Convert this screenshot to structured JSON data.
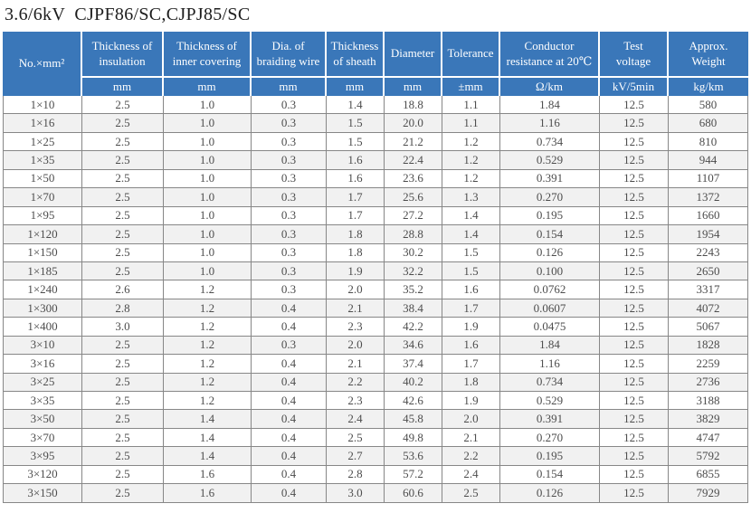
{
  "title": "3.6/6kV  CJPF86/SC,CJPJ85/SC",
  "colors": {
    "header_bg": "#3a77b9",
    "header_text": "#ffffff",
    "row_stripe": "#f1f1f1",
    "grid_line": "#878787",
    "body_text": "#4d4d4d"
  },
  "table": {
    "columns": [
      {
        "label": "No.×mm²",
        "unit": ""
      },
      {
        "label": "Thickness of insulation",
        "unit": "mm"
      },
      {
        "label": "Thickness of inner covering",
        "unit": "mm"
      },
      {
        "label": "Dia. of braiding wire",
        "unit": "mm"
      },
      {
        "label": "Thickness of sheath",
        "unit": "mm"
      },
      {
        "label": "Diameter",
        "unit": "mm"
      },
      {
        "label": "Tolerance",
        "unit": "±mm"
      },
      {
        "label": "Conductor resistance at 20℃",
        "unit": "Ω/km"
      },
      {
        "label": "Test voltage",
        "unit": "kV/5min"
      },
      {
        "label": "Approx. Weight",
        "unit": "kg/km"
      }
    ],
    "rows": [
      [
        "1×10",
        "2.5",
        "1.0",
        "0.3",
        "1.4",
        "18.8",
        "1.1",
        "1.84",
        "12.5",
        "580"
      ],
      [
        "1×16",
        "2.5",
        "1.0",
        "0.3",
        "1.5",
        "20.0",
        "1.1",
        "1.16",
        "12.5",
        "680"
      ],
      [
        "1×25",
        "2.5",
        "1.0",
        "0.3",
        "1.5",
        "21.2",
        "1.2",
        "0.734",
        "12.5",
        "810"
      ],
      [
        "1×35",
        "2.5",
        "1.0",
        "0.3",
        "1.6",
        "22.4",
        "1.2",
        "0.529",
        "12.5",
        "944"
      ],
      [
        "1×50",
        "2.5",
        "1.0",
        "0.3",
        "1.6",
        "23.6",
        "1.2",
        "0.391",
        "12.5",
        "1107"
      ],
      [
        "1×70",
        "2.5",
        "1.0",
        "0.3",
        "1.7",
        "25.6",
        "1.3",
        "0.270",
        "12.5",
        "1372"
      ],
      [
        "1×95",
        "2.5",
        "1.0",
        "0.3",
        "1.7",
        "27.2",
        "1.4",
        "0.195",
        "12.5",
        "1660"
      ],
      [
        "1×120",
        "2.5",
        "1.0",
        "0.3",
        "1.8",
        "28.8",
        "1.4",
        "0.154",
        "12.5",
        "1954"
      ],
      [
        "1×150",
        "2.5",
        "1.0",
        "0.3",
        "1.8",
        "30.2",
        "1.5",
        "0.126",
        "12.5",
        "2243"
      ],
      [
        "1×185",
        "2.5",
        "1.0",
        "0.3",
        "1.9",
        "32.2",
        "1.5",
        "0.100",
        "12.5",
        "2650"
      ],
      [
        "1×240",
        "2.6",
        "1.2",
        "0.3",
        "2.0",
        "35.2",
        "1.6",
        "0.0762",
        "12.5",
        "3317"
      ],
      [
        "1×300",
        "2.8",
        "1.2",
        "0.4",
        "2.1",
        "38.4",
        "1.7",
        "0.0607",
        "12.5",
        "4072"
      ],
      [
        "1×400",
        "3.0",
        "1.2",
        "0.4",
        "2.3",
        "42.2",
        "1.9",
        "0.0475",
        "12.5",
        "5067"
      ],
      [
        "3×10",
        "2.5",
        "1.2",
        "0.3",
        "2.0",
        "34.6",
        "1.6",
        "1.84",
        "12.5",
        "1828"
      ],
      [
        "3×16",
        "2.5",
        "1.2",
        "0.4",
        "2.1",
        "37.4",
        "1.7",
        "1.16",
        "12.5",
        "2259"
      ],
      [
        "3×25",
        "2.5",
        "1.2",
        "0.4",
        "2.2",
        "40.2",
        "1.8",
        "0.734",
        "12.5",
        "2736"
      ],
      [
        "3×35",
        "2.5",
        "1.2",
        "0.4",
        "2.3",
        "42.6",
        "1.9",
        "0.529",
        "12.5",
        "3188"
      ],
      [
        "3×50",
        "2.5",
        "1.4",
        "0.4",
        "2.4",
        "45.8",
        "2.0",
        "0.391",
        "12.5",
        "3829"
      ],
      [
        "3×70",
        "2.5",
        "1.4",
        "0.4",
        "2.5",
        "49.8",
        "2.1",
        "0.270",
        "12.5",
        "4747"
      ],
      [
        "3×95",
        "2.5",
        "1.4",
        "0.4",
        "2.7",
        "53.6",
        "2.2",
        "0.195",
        "12.5",
        "5792"
      ],
      [
        "3×120",
        "2.5",
        "1.6",
        "0.4",
        "2.8",
        "57.2",
        "2.4",
        "0.154",
        "12.5",
        "6855"
      ],
      [
        "3×150",
        "2.5",
        "1.6",
        "0.4",
        "3.0",
        "60.6",
        "2.5",
        "0.126",
        "12.5",
        "7929"
      ]
    ]
  }
}
